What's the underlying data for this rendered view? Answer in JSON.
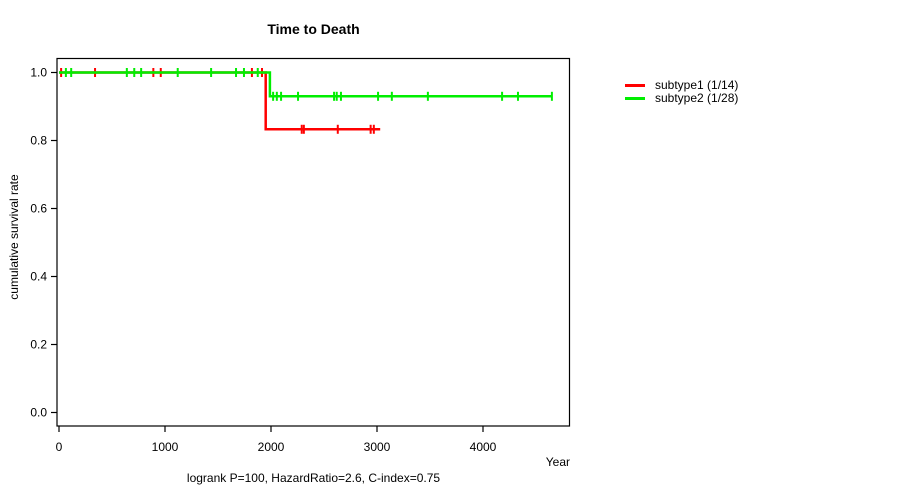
{
  "chart_data": {
    "type": "line",
    "variant": "kaplan-meier-step-curve",
    "title": "Time to Death",
    "xlabel": "Year",
    "ylabel": "cumulative survival rate",
    "annotation": "logrank P=100, HazardRatio=2.6, C-index=0.75",
    "xlim": [
      0,
      4820
    ],
    "ylim": [
      0,
      1
    ],
    "x_ticks": [
      0,
      1000,
      2000,
      3000,
      4000
    ],
    "y_ticks": [
      0.0,
      0.2,
      0.4,
      0.6,
      0.8,
      1.0
    ],
    "grid": false,
    "legend_position": "right-outside",
    "series": [
      {
        "name": "subtype1 (1/14)",
        "color": "#ff0000",
        "points": [
          [
            0,
            1.0
          ],
          [
            1950,
            1.0
          ],
          [
            1950,
            0.833
          ],
          [
            3030,
            0.833
          ]
        ],
        "censors": [
          [
            20,
            1.0
          ],
          [
            340,
            1.0
          ],
          [
            890,
            1.0
          ],
          [
            960,
            1.0
          ],
          [
            1820,
            1.0
          ],
          [
            1915,
            1.0
          ],
          [
            2290,
            0.833
          ],
          [
            2310,
            0.833
          ],
          [
            2630,
            0.833
          ],
          [
            2940,
            0.833
          ],
          [
            2970,
            0.833
          ]
        ]
      },
      {
        "name": "subtype2 (1/28)",
        "color": "#00ee00",
        "points": [
          [
            0,
            1.0
          ],
          [
            1990,
            1.0
          ],
          [
            1990,
            0.93
          ],
          [
            4650,
            0.93
          ]
        ],
        "censors": [
          [
            65,
            1.0
          ],
          [
            115,
            1.0
          ],
          [
            640,
            1.0
          ],
          [
            710,
            1.0
          ],
          [
            775,
            1.0
          ],
          [
            1120,
            1.0
          ],
          [
            1435,
            1.0
          ],
          [
            1670,
            1.0
          ],
          [
            1745,
            1.0
          ],
          [
            1875,
            1.0
          ],
          [
            2020,
            0.93
          ],
          [
            2055,
            0.93
          ],
          [
            2095,
            0.93
          ],
          [
            2255,
            0.93
          ],
          [
            2595,
            0.93
          ],
          [
            2620,
            0.93
          ],
          [
            2660,
            0.93
          ],
          [
            3010,
            0.93
          ],
          [
            3140,
            0.93
          ],
          [
            3480,
            0.93
          ],
          [
            4180,
            0.93
          ],
          [
            4330,
            0.93
          ],
          [
            4650,
            0.93
          ]
        ]
      }
    ]
  }
}
